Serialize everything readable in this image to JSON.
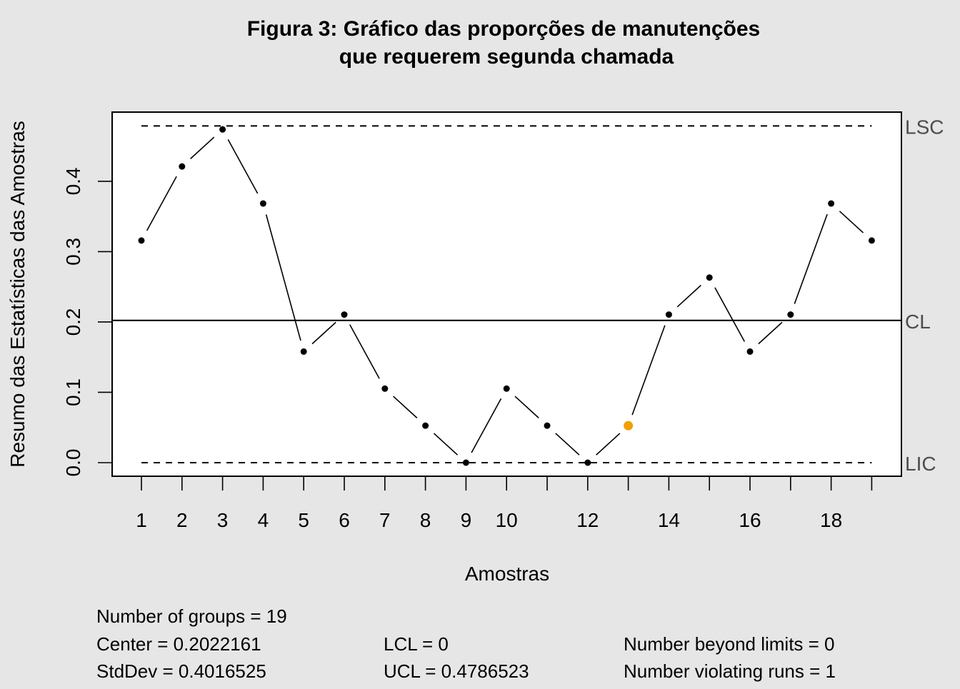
{
  "chart_data": {
    "type": "line",
    "title_line1": "Figura 3: Gráfico das proporções de manutenções",
    "title_line2": "que requerem segunda chamada",
    "xlabel": "Amostras",
    "ylabel": "Resumo das Estatísticas das Amostras",
    "x": [
      1,
      2,
      3,
      4,
      5,
      6,
      7,
      8,
      9,
      10,
      11,
      12,
      13,
      14,
      15,
      16,
      17,
      18,
      19
    ],
    "values": [
      0.3158,
      0.4211,
      0.4737,
      0.3684,
      0.1579,
      0.2105,
      0.1053,
      0.0526,
      0.0,
      0.1053,
      0.0526,
      0.0,
      0.0526,
      0.2105,
      0.2632,
      0.1579,
      0.2105,
      0.3684,
      0.3158
    ],
    "violating_points": [
      13
    ],
    "x_tick_labels": [
      "1",
      "2",
      "3",
      "4",
      "5",
      "6",
      "7",
      "8",
      "9",
      "10",
      "12",
      "14",
      "16",
      "18"
    ],
    "y_ticks": [
      "0.0",
      "0.1",
      "0.2",
      "0.3",
      "0.4"
    ],
    "ylim": [
      0,
      0.4786523
    ],
    "center_line": 0.2022161,
    "lcl": 0,
    "ucl": 0.4786523,
    "limit_labels": {
      "ucl": "LSC",
      "center": "CL",
      "lcl": "LIC"
    },
    "colors": {
      "point": "#000000",
      "violating": "#f0a000",
      "line": "#000000",
      "background": "#e6e6e6",
      "plot_area": "#ffffff"
    }
  },
  "stats": {
    "groups": "Number of groups = 19",
    "center": "Center = 0.2022161",
    "stddev": "StdDev = 0.4016525",
    "lcl": "LCL = 0",
    "ucl": "UCL = 0.4786523",
    "beyond": "Number beyond limits = 0",
    "runs": "Number violating runs = 1"
  }
}
